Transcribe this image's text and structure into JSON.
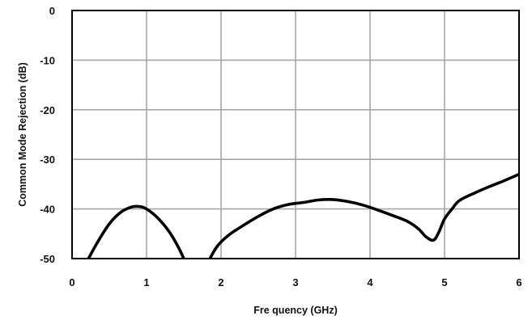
{
  "chart_data": {
    "type": "line",
    "title": "",
    "xlabel": "Fre quency (GHz)",
    "ylabel": "Common Mode Rejection (dB)",
    "xlim": [
      0,
      6
    ],
    "ylim": [
      -50,
      0
    ],
    "x_ticks": [
      "0",
      "1",
      "2",
      "3",
      "4",
      "5",
      "6"
    ],
    "y_ticks": [
      "0",
      "-10",
      "-20",
      "-30",
      "-40",
      "-50"
    ],
    "grid": true,
    "legend": "none",
    "colors": {
      "line": "#000000",
      "grid": "#a6a6a6",
      "frame": "#000000"
    },
    "series": [
      {
        "segments": [
          [
            [
              0.22,
              -50
            ],
            [
              0.35,
              -46.5
            ],
            [
              0.5,
              -43.0
            ],
            [
              0.65,
              -40.7
            ],
            [
              0.8,
              -39.6
            ],
            [
              0.9,
              -39.5
            ],
            [
              1.0,
              -40.0
            ],
            [
              1.15,
              -41.8
            ],
            [
              1.3,
              -44.5
            ],
            [
              1.42,
              -47.5
            ],
            [
              1.5,
              -50
            ]
          ],
          [
            [
              1.85,
              -50
            ],
            [
              1.95,
              -47.5
            ],
            [
              2.1,
              -45.3
            ],
            [
              2.3,
              -43.3
            ],
            [
              2.5,
              -41.5
            ],
            [
              2.7,
              -40.0
            ],
            [
              2.9,
              -39.1
            ],
            [
              3.1,
              -38.7
            ],
            [
              3.3,
              -38.2
            ],
            [
              3.5,
              -38.1
            ],
            [
              3.7,
              -38.5
            ],
            [
              3.9,
              -39.2
            ],
            [
              4.1,
              -40.2
            ],
            [
              4.3,
              -41.3
            ],
            [
              4.5,
              -42.5
            ],
            [
              4.65,
              -44.0
            ],
            [
              4.75,
              -45.6
            ],
            [
              4.85,
              -46.3
            ],
            [
              4.92,
              -44.8
            ],
            [
              5.0,
              -42.0
            ],
            [
              5.1,
              -40.0
            ],
            [
              5.2,
              -38.3
            ],
            [
              5.4,
              -36.8
            ],
            [
              5.6,
              -35.5
            ],
            [
              5.8,
              -34.3
            ],
            [
              6.0,
              -33.0
            ]
          ]
        ]
      }
    ]
  }
}
